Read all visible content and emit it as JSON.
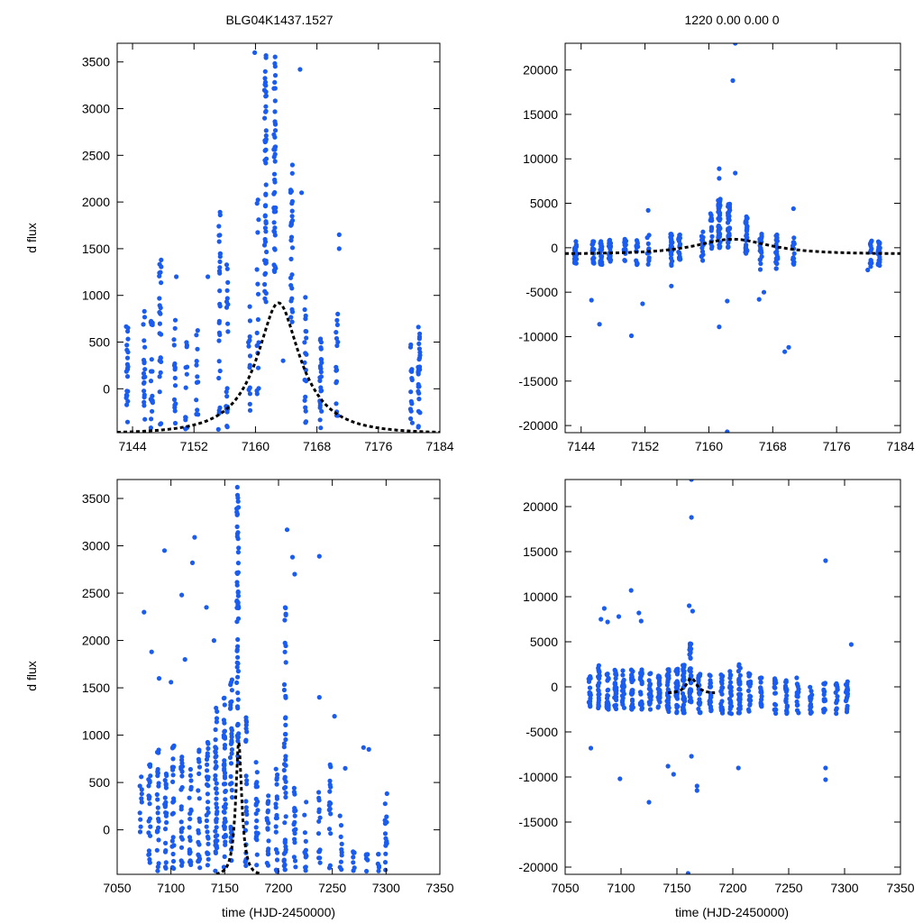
{
  "title_left": "BLG04K1437.1527",
  "title_right": "1220  0.00  0.00  0",
  "ylabel": "d flux",
  "xlabel": "time (HJD-2450000)",
  "colors": {
    "points": "#1a5cf0",
    "model": "#000000",
    "axes": "#000000"
  },
  "chart_data": [
    {
      "type": "scatter",
      "panel": "top-left",
      "xlim": [
        7142,
        7184
      ],
      "ylim": [
        -470,
        3700
      ],
      "xticks": [
        7144,
        7152,
        7160,
        7168,
        7176,
        7184
      ],
      "yticks": [
        0,
        500,
        1000,
        1500,
        2000,
        2500,
        3000,
        3500
      ],
      "tick_labels_x": [
        "7144",
        "7152",
        "7160",
        "7168",
        "7176",
        "7184"
      ],
      "tick_labels_y": [
        "0",
        "500",
        "1000",
        "1500",
        "2000",
        "2500",
        "3000",
        "3500"
      ],
      "model": {
        "t0": 7163.0,
        "u0": 0.38,
        "tE": 7.2,
        "scale": 790,
        "base": -480,
        "xrange": [
          7142,
          7184
        ]
      },
      "clusters": [
        {
          "x": 7143.3,
          "ylo": -420,
          "yhi": 760,
          "n": 22
        },
        {
          "x": 7145.5,
          "ylo": -400,
          "yhi": 930,
          "n": 20
        },
        {
          "x": 7146.5,
          "ylo": -420,
          "yhi": 820,
          "n": 18
        },
        {
          "x": 7147.6,
          "ylo": -440,
          "yhi": 1390,
          "n": 24
        },
        {
          "x": 7149.5,
          "ylo": -400,
          "yhi": 800,
          "n": 16
        },
        {
          "x": 7151.0,
          "ylo": -440,
          "yhi": 550,
          "n": 12
        },
        {
          "x": 7152.4,
          "ylo": -350,
          "yhi": 650,
          "n": 12
        },
        {
          "x": 7155.3,
          "ylo": -450,
          "yhi": 1920,
          "n": 28
        },
        {
          "x": 7156.3,
          "ylo": -440,
          "yhi": 1480,
          "n": 20
        },
        {
          "x": 7159.2,
          "ylo": -300,
          "yhi": 1000,
          "n": 14
        },
        {
          "x": 7160.3,
          "ylo": -120,
          "yhi": 2100,
          "n": 16
        },
        {
          "x": 7161.3,
          "ylo": 900,
          "yhi": 3650,
          "n": 55
        },
        {
          "x": 7162.5,
          "ylo": 1200,
          "yhi": 3600,
          "n": 45
        },
        {
          "x": 7164.7,
          "ylo": 700,
          "yhi": 2400,
          "n": 28
        },
        {
          "x": 7166.5,
          "ylo": -380,
          "yhi": 1000,
          "n": 20
        },
        {
          "x": 7168.5,
          "ylo": -420,
          "yhi": 560,
          "n": 26
        },
        {
          "x": 7170.6,
          "ylo": -300,
          "yhi": 900,
          "n": 16
        },
        {
          "x": 7180.3,
          "ylo": -420,
          "yhi": 500,
          "n": 14
        },
        {
          "x": 7181.3,
          "ylo": -440,
          "yhi": 760,
          "n": 28
        }
      ],
      "points": [
        {
          "x": 7153.8,
          "y": 1200
        },
        {
          "x": 7149.7,
          "y": 1200
        },
        {
          "x": 7165.8,
          "y": 3420
        },
        {
          "x": 7166.0,
          "y": 2100
        },
        {
          "x": 7170.9,
          "y": 1650
        },
        {
          "x": 7170.9,
          "y": 1500
        },
        {
          "x": 7163.6,
          "y": 300
        },
        {
          "x": 7159.9,
          "y": 3600
        }
      ]
    },
    {
      "type": "scatter",
      "panel": "top-right",
      "xlim": [
        7142,
        7184
      ],
      "ylim": [
        -20800,
        23000
      ],
      "xticks": [
        7144,
        7152,
        7160,
        7168,
        7176,
        7184
      ],
      "yticks": [
        -20000,
        -15000,
        -10000,
        -5000,
        0,
        5000,
        10000,
        15000,
        20000
      ],
      "tick_labels_x": [
        "7144",
        "7152",
        "7160",
        "7168",
        "7176",
        "7184"
      ],
      "tick_labels_y": [
        "-20000",
        "-15000",
        "-10000",
        "-5000",
        "0",
        "5000",
        "10000",
        "15000",
        "20000"
      ],
      "model": {
        "t0": 7163.0,
        "u0": 0.85,
        "tE": 6.5,
        "scale": 3500,
        "base": -700,
        "xrange": [
          7142,
          7184
        ]
      },
      "clusters": [
        {
          "x": 7143.3,
          "ylo": -1800,
          "yhi": 800,
          "n": 22
        },
        {
          "x": 7145.5,
          "ylo": -1800,
          "yhi": 800,
          "n": 20
        },
        {
          "x": 7146.5,
          "ylo": -2000,
          "yhi": 900,
          "n": 18
        },
        {
          "x": 7147.6,
          "ylo": -1800,
          "yhi": 900,
          "n": 24
        },
        {
          "x": 7149.5,
          "ylo": -1500,
          "yhi": 1000,
          "n": 16
        },
        {
          "x": 7151.0,
          "ylo": -2000,
          "yhi": 1000,
          "n": 12
        },
        {
          "x": 7152.4,
          "ylo": -2000,
          "yhi": 1500,
          "n": 12
        },
        {
          "x": 7155.3,
          "ylo": -2000,
          "yhi": 1900,
          "n": 28
        },
        {
          "x": 7156.3,
          "ylo": -2000,
          "yhi": 1500,
          "n": 20
        },
        {
          "x": 7159.2,
          "ylo": -1500,
          "yhi": 2500,
          "n": 14
        },
        {
          "x": 7160.3,
          "ylo": -500,
          "yhi": 4000,
          "n": 16
        },
        {
          "x": 7161.3,
          "ylo": 0,
          "yhi": 5500,
          "n": 45
        },
        {
          "x": 7162.5,
          "ylo": 0,
          "yhi": 5000,
          "n": 40
        },
        {
          "x": 7164.7,
          "ylo": -1000,
          "yhi": 3500,
          "n": 28
        },
        {
          "x": 7166.5,
          "ylo": -2500,
          "yhi": 2000,
          "n": 20
        },
        {
          "x": 7168.5,
          "ylo": -2500,
          "yhi": 1500,
          "n": 26
        },
        {
          "x": 7170.6,
          "ylo": -2500,
          "yhi": 1200,
          "n": 16
        },
        {
          "x": 7180.3,
          "ylo": -2500,
          "yhi": 1000,
          "n": 14
        },
        {
          "x": 7181.3,
          "ylo": -2000,
          "yhi": 800,
          "n": 28
        }
      ],
      "points": [
        {
          "x": 7163.3,
          "y": 23000
        },
        {
          "x": 7163.0,
          "y": 18800
        },
        {
          "x": 7161.3,
          "y": 8900
        },
        {
          "x": 7161.3,
          "y": 7800
        },
        {
          "x": 7163.3,
          "y": 8400
        },
        {
          "x": 7152.4,
          "y": 4200
        },
        {
          "x": 7170.6,
          "y": 4400
        },
        {
          "x": 7164.7,
          "y": 3500
        },
        {
          "x": 7145.3,
          "y": -5900
        },
        {
          "x": 7146.3,
          "y": -8600
        },
        {
          "x": 7150.3,
          "y": -9900
        },
        {
          "x": 7151.7,
          "y": -6300
        },
        {
          "x": 7155.3,
          "y": -4300
        },
        {
          "x": 7161.3,
          "y": -8900
        },
        {
          "x": 7162.3,
          "y": -6000
        },
        {
          "x": 7166.9,
          "y": -5000
        },
        {
          "x": 7166.3,
          "y": -5800
        },
        {
          "x": 7169.5,
          "y": -11700
        },
        {
          "x": 7170.0,
          "y": -11200
        },
        {
          "x": 7162.3,
          "y": -20700
        },
        {
          "x": 7179.9,
          "y": -2500
        }
      ]
    },
    {
      "type": "scatter",
      "panel": "bottom-left",
      "xlim": [
        7050,
        7350
      ],
      "ylim": [
        -470,
        3700
      ],
      "xticks": [
        7050,
        7100,
        7150,
        7200,
        7250,
        7300,
        7350
      ],
      "yticks": [
        0,
        500,
        1000,
        1500,
        2000,
        2500,
        3000,
        3500
      ],
      "tick_labels_x": [
        "7050",
        "7100",
        "7150",
        "7200",
        "7250",
        "7300",
        "7350"
      ],
      "tick_labels_y": [
        "0",
        "500",
        "1000",
        "1500",
        "2000",
        "2500",
        "3000",
        "3500"
      ],
      "model": {
        "t0": 7163.0,
        "u0": 0.38,
        "tE": 7.2,
        "scale": 790,
        "base": -480,
        "xrange": [
          7142,
          7184
        ]
      },
      "clusters": [
        {
          "x": 7072,
          "ylo": -440,
          "yhi": 580,
          "n": 10
        },
        {
          "x": 7080,
          "ylo": -440,
          "yhi": 800,
          "n": 22
        },
        {
          "x": 7088,
          "ylo": -440,
          "yhi": 900,
          "n": 25
        },
        {
          "x": 7095,
          "ylo": -440,
          "yhi": 700,
          "n": 22
        },
        {
          "x": 7102,
          "ylo": -440,
          "yhi": 1000,
          "n": 25
        },
        {
          "x": 7110,
          "ylo": -440,
          "yhi": 800,
          "n": 22
        },
        {
          "x": 7118,
          "ylo": -440,
          "yhi": 900,
          "n": 22
        },
        {
          "x": 7126,
          "ylo": -440,
          "yhi": 900,
          "n": 22
        },
        {
          "x": 7134,
          "ylo": -440,
          "yhi": 1000,
          "n": 30
        },
        {
          "x": 7142,
          "ylo": -440,
          "yhi": 1300,
          "n": 45
        },
        {
          "x": 7150,
          "ylo": -440,
          "yhi": 1400,
          "n": 45
        },
        {
          "x": 7156,
          "ylo": -440,
          "yhi": 1600,
          "n": 35
        },
        {
          "x": 7162,
          "ylo": 700,
          "yhi": 3650,
          "n": 60
        },
        {
          "x": 7170,
          "ylo": -440,
          "yhi": 1200,
          "n": 25
        },
        {
          "x": 7180,
          "ylo": -440,
          "yhi": 800,
          "n": 22
        },
        {
          "x": 7190,
          "ylo": -440,
          "yhi": 600,
          "n": 18
        },
        {
          "x": 7198,
          "ylo": -440,
          "yhi": 700,
          "n": 20
        },
        {
          "x": 7206,
          "ylo": -440,
          "yhi": 2400,
          "n": 50
        },
        {
          "x": 7215,
          "ylo": -440,
          "yhi": 500,
          "n": 18
        },
        {
          "x": 7225,
          "ylo": -440,
          "yhi": 300,
          "n": 12
        },
        {
          "x": 7238,
          "ylo": -440,
          "yhi": 400,
          "n": 14
        },
        {
          "x": 7248,
          "ylo": -440,
          "yhi": 700,
          "n": 16
        },
        {
          "x": 7258,
          "ylo": -440,
          "yhi": 300,
          "n": 10
        },
        {
          "x": 7270,
          "ylo": -440,
          "yhi": -200,
          "n": 8
        },
        {
          "x": 7282,
          "ylo": -440,
          "yhi": -250,
          "n": 6
        },
        {
          "x": 7293,
          "ylo": -440,
          "yhi": -250,
          "n": 6
        },
        {
          "x": 7300,
          "ylo": -440,
          "yhi": 400,
          "n": 14
        }
      ],
      "points": [
        {
          "x": 7075,
          "y": 2300
        },
        {
          "x": 7082,
          "y": 1880
        },
        {
          "x": 7094,
          "y": 2950
        },
        {
          "x": 7110,
          "y": 2480
        },
        {
          "x": 7120,
          "y": 2820
        },
        {
          "x": 7122,
          "y": 3090
        },
        {
          "x": 7089,
          "y": 1600
        },
        {
          "x": 7100,
          "y": 1560
        },
        {
          "x": 7113,
          "y": 1800
        },
        {
          "x": 7133,
          "y": 2350
        },
        {
          "x": 7208,
          "y": 3170
        },
        {
          "x": 7213,
          "y": 2880
        },
        {
          "x": 7215,
          "y": 2700
        },
        {
          "x": 7238,
          "y": 2890
        },
        {
          "x": 7238,
          "y": 1400
        },
        {
          "x": 7252,
          "y": 1200
        },
        {
          "x": 7262,
          "y": 650
        },
        {
          "x": 7279,
          "y": 870
        },
        {
          "x": 7284,
          "y": 850
        },
        {
          "x": 7299,
          "y": 100
        },
        {
          "x": 7140,
          "y": 2000
        }
      ]
    },
    {
      "type": "scatter",
      "panel": "bottom-right",
      "xlim": [
        7050,
        7350
      ],
      "ylim": [
        -20800,
        23000
      ],
      "xticks": [
        7050,
        7100,
        7150,
        7200,
        7250,
        7300,
        7350
      ],
      "yticks": [
        -20000,
        -15000,
        -10000,
        -5000,
        0,
        5000,
        10000,
        15000,
        20000
      ],
      "tick_labels_x": [
        "7050",
        "7100",
        "7150",
        "7200",
        "7250",
        "7300",
        "7350"
      ],
      "tick_labels_y": [
        "-20000",
        "-15000",
        "-10000",
        "-5000",
        "0",
        "5000",
        "10000",
        "15000",
        "20000"
      ],
      "model": {
        "t0": 7163.0,
        "u0": 0.85,
        "tE": 6.5,
        "scale": 3500,
        "base": -700,
        "xrange": [
          7142,
          7184
        ]
      },
      "clusters": [
        {
          "x": 7072,
          "ylo": -2500,
          "yhi": 1500,
          "n": 18
        },
        {
          "x": 7080,
          "ylo": -2500,
          "yhi": 2500,
          "n": 25
        },
        {
          "x": 7088,
          "ylo": -2500,
          "yhi": 2000,
          "n": 25
        },
        {
          "x": 7095,
          "ylo": -2500,
          "yhi": 2000,
          "n": 25
        },
        {
          "x": 7102,
          "ylo": -2500,
          "yhi": 2000,
          "n": 25
        },
        {
          "x": 7110,
          "ylo": -2500,
          "yhi": 2000,
          "n": 25
        },
        {
          "x": 7118,
          "ylo": -2500,
          "yhi": 2000,
          "n": 22
        },
        {
          "x": 7126,
          "ylo": -2500,
          "yhi": 1500,
          "n": 22
        },
        {
          "x": 7134,
          "ylo": -2500,
          "yhi": 1500,
          "n": 25
        },
        {
          "x": 7142,
          "ylo": -3000,
          "yhi": 2000,
          "n": 30
        },
        {
          "x": 7150,
          "ylo": -3000,
          "yhi": 2000,
          "n": 30
        },
        {
          "x": 7156,
          "ylo": -3000,
          "yhi": 2500,
          "n": 30
        },
        {
          "x": 7162,
          "ylo": -2000,
          "yhi": 5000,
          "n": 40
        },
        {
          "x": 7170,
          "ylo": -3000,
          "yhi": 1500,
          "n": 25
        },
        {
          "x": 7180,
          "ylo": -3000,
          "yhi": 1500,
          "n": 22
        },
        {
          "x": 7190,
          "ylo": -3000,
          "yhi": 1500,
          "n": 20
        },
        {
          "x": 7198,
          "ylo": -3000,
          "yhi": 2000,
          "n": 22
        },
        {
          "x": 7206,
          "ylo": -3000,
          "yhi": 2500,
          "n": 35
        },
        {
          "x": 7215,
          "ylo": -3000,
          "yhi": 1500,
          "n": 22
        },
        {
          "x": 7225,
          "ylo": -3000,
          "yhi": 1000,
          "n": 18
        },
        {
          "x": 7238,
          "ylo": -3000,
          "yhi": 1000,
          "n": 18
        },
        {
          "x": 7248,
          "ylo": -3000,
          "yhi": 1000,
          "n": 20
        },
        {
          "x": 7258,
          "ylo": -3000,
          "yhi": 1000,
          "n": 16
        },
        {
          "x": 7270,
          "ylo": -3000,
          "yhi": 500,
          "n": 16
        },
        {
          "x": 7282,
          "ylo": -3000,
          "yhi": 500,
          "n": 16
        },
        {
          "x": 7293,
          "ylo": -3000,
          "yhi": 500,
          "n": 16
        },
        {
          "x": 7302,
          "ylo": -3000,
          "yhi": 800,
          "n": 22
        }
      ],
      "points": [
        {
          "x": 7163,
          "y": 23000
        },
        {
          "x": 7163,
          "y": 18800
        },
        {
          "x": 7283,
          "y": 14000
        },
        {
          "x": 7109,
          "y": 10700
        },
        {
          "x": 7085,
          "y": 8700
        },
        {
          "x": 7082,
          "y": 7500
        },
        {
          "x": 7088,
          "y": 7200
        },
        {
          "x": 7098,
          "y": 7800
        },
        {
          "x": 7116,
          "y": 8200
        },
        {
          "x": 7118,
          "y": 7300
        },
        {
          "x": 7161,
          "y": 9000
        },
        {
          "x": 7164,
          "y": 8400
        },
        {
          "x": 7306,
          "y": 4700
        },
        {
          "x": 7073,
          "y": -6800
        },
        {
          "x": 7099,
          "y": -10200
        },
        {
          "x": 7125,
          "y": -12800
        },
        {
          "x": 7168,
          "y": -11500
        },
        {
          "x": 7168,
          "y": -11000
        },
        {
          "x": 7160,
          "y": -20700
        },
        {
          "x": 7283,
          "y": -9000
        },
        {
          "x": 7283,
          "y": -10300
        },
        {
          "x": 7205,
          "y": -9000
        },
        {
          "x": 7147,
          "y": -9700
        },
        {
          "x": 7142,
          "y": -8800
        },
        {
          "x": 7163,
          "y": -7700
        }
      ]
    }
  ]
}
